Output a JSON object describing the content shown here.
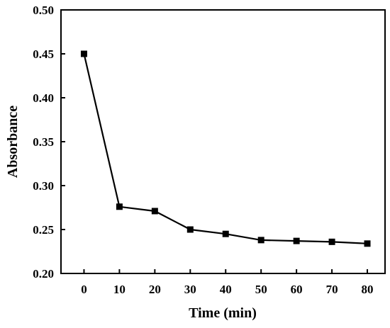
{
  "chart_data": {
    "type": "line",
    "title": "",
    "xlabel": "Time (min)",
    "ylabel": "Absorbance",
    "xlim": [
      -6.5,
      85
    ],
    "ylim": [
      0.2,
      0.5
    ],
    "x_ticks": [
      0,
      10,
      20,
      30,
      40,
      50,
      60,
      70,
      80
    ],
    "y_ticks": [
      0.2,
      0.25,
      0.3,
      0.35,
      0.4,
      0.45,
      0.5
    ],
    "x_tick_labels": [
      "0",
      "10",
      "20",
      "30",
      "40",
      "50",
      "60",
      "70",
      "80"
    ],
    "y_tick_labels": [
      "0.20",
      "0.25",
      "0.30",
      "0.35",
      "0.40",
      "0.45",
      "0.50"
    ],
    "grid": false,
    "legend": "none",
    "series": [
      {
        "marker": "square",
        "color": "#000000",
        "x": [
          0,
          10,
          20,
          30,
          40,
          50,
          60,
          70,
          80
        ],
        "y": [
          0.45,
          0.276,
          0.271,
          0.25,
          0.245,
          0.238,
          0.237,
          0.236,
          0.234
        ]
      }
    ]
  }
}
